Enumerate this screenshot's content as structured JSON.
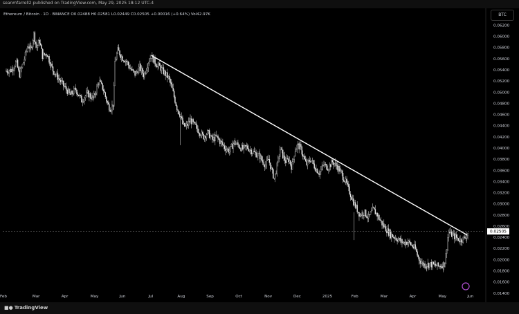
{
  "header": {
    "publisher_line": "seanmfarrell2 published on TradingView.com, May 29, 2025 18:12 UTC-4"
  },
  "legend": {
    "symbol": "Ethereum / Bitcoin · 1D · BINANCE",
    "open": "O0.02488",
    "high": "H0.02581",
    "low": "L0.02449",
    "close": "C0.02505",
    "change": "+0.00016 (+0.64%)",
    "volume": "Vol42.97K"
  },
  "currency_button": "BTC",
  "footer": {
    "logo_text": "TradingView"
  },
  "colors": {
    "background": "#000000",
    "candle": "#e8e8e8",
    "trendline": "#ffffff",
    "price_label_bg": "#ffffff",
    "price_label_fg": "#000000"
  },
  "chart_data": {
    "type": "candlestick",
    "title": "Ethereum / Bitcoin · 1D · BINANCE",
    "ylim": [
      0.0136,
      0.0628
    ],
    "y_ticks": [
      "0.06200",
      "0.06000",
      "0.05800",
      "0.05600",
      "0.05400",
      "0.05200",
      "0.05000",
      "0.04800",
      "0.04600",
      "0.04400",
      "0.04200",
      "0.04000",
      "0.03800",
      "0.03600",
      "0.03400",
      "0.03200",
      "0.03000",
      "0.02800",
      "0.02600",
      "0.02400",
      "0.02200",
      "0.02000",
      "0.01800",
      "0.01600",
      "0.01400"
    ],
    "x_ticks": [
      "Feb",
      "Mar",
      "Apr",
      "May",
      "Jun",
      "Jul",
      "Aug",
      "Sep",
      "Oct",
      "Nov",
      "Dec",
      "2025",
      "Feb",
      "Mar",
      "Apr",
      "May",
      "Jun"
    ],
    "x_tick_months": [
      0,
      1,
      2,
      3,
      4,
      5,
      6,
      7,
      8,
      9,
      10,
      11,
      12,
      13,
      14,
      15,
      16
    ],
    "last_price": "0.02505",
    "last_price_value": 0.02505,
    "trendline": {
      "start": [
        5.0,
        0.0566
      ],
      "end": [
        15.9,
        0.0244
      ]
    },
    "price_path": [
      [
        0.0,
        0.0538
      ],
      [
        0.2,
        0.054
      ],
      [
        0.35,
        0.0555
      ],
      [
        0.45,
        0.053
      ],
      [
        0.6,
        0.0555
      ],
      [
        0.75,
        0.0585
      ],
      [
        0.85,
        0.0575
      ],
      [
        0.95,
        0.0605
      ],
      [
        1.05,
        0.058
      ],
      [
        1.15,
        0.0592
      ],
      [
        1.25,
        0.0565
      ],
      [
        1.4,
        0.057
      ],
      [
        1.6,
        0.054
      ],
      [
        1.8,
        0.0525
      ],
      [
        2.0,
        0.051
      ],
      [
        2.2,
        0.0495
      ],
      [
        2.4,
        0.0505
      ],
      [
        2.6,
        0.0485
      ],
      [
        2.8,
        0.0498
      ],
      [
        3.0,
        0.0488
      ],
      [
        3.2,
        0.052
      ],
      [
        3.35,
        0.0505
      ],
      [
        3.5,
        0.0478
      ],
      [
        3.6,
        0.047
      ],
      [
        3.7,
        0.048
      ],
      [
        3.75,
        0.0555
      ],
      [
        3.85,
        0.0575
      ],
      [
        4.0,
        0.0562
      ],
      [
        4.15,
        0.0555
      ],
      [
        4.3,
        0.054
      ],
      [
        4.45,
        0.0532
      ],
      [
        4.6,
        0.0545
      ],
      [
        4.75,
        0.053
      ],
      [
        4.9,
        0.0555
      ],
      [
        5.0,
        0.0565
      ],
      [
        5.15,
        0.0552
      ],
      [
        5.3,
        0.0545
      ],
      [
        5.45,
        0.0535
      ],
      [
        5.6,
        0.0525
      ],
      [
        5.7,
        0.051
      ],
      [
        5.8,
        0.049
      ],
      [
        5.9,
        0.047
      ],
      [
        6.0,
        0.046
      ],
      [
        6.1,
        0.044
      ],
      [
        6.2,
        0.0438
      ],
      [
        6.35,
        0.045
      ],
      [
        6.5,
        0.044
      ],
      [
        6.65,
        0.043
      ],
      [
        6.8,
        0.042
      ],
      [
        6.95,
        0.0428
      ],
      [
        7.1,
        0.0415
      ],
      [
        7.25,
        0.042
      ],
      [
        7.4,
        0.041
      ],
      [
        7.55,
        0.04
      ],
      [
        7.7,
        0.0395
      ],
      [
        7.85,
        0.041
      ],
      [
        8.0,
        0.0405
      ],
      [
        8.15,
        0.0398
      ],
      [
        8.3,
        0.0402
      ],
      [
        8.45,
        0.0395
      ],
      [
        8.6,
        0.039
      ],
      [
        8.75,
        0.0385
      ],
      [
        8.85,
        0.0375
      ],
      [
        8.95,
        0.037
      ],
      [
        9.05,
        0.038
      ],
      [
        9.15,
        0.036
      ],
      [
        9.25,
        0.0345
      ],
      [
        9.35,
        0.037
      ],
      [
        9.45,
        0.04
      ],
      [
        9.55,
        0.0385
      ],
      [
        9.65,
        0.0375
      ],
      [
        9.75,
        0.038
      ],
      [
        9.85,
        0.0365
      ],
      [
        9.95,
        0.0395
      ],
      [
        10.05,
        0.0405
      ],
      [
        10.15,
        0.04
      ],
      [
        10.25,
        0.0385
      ],
      [
        10.35,
        0.037
      ],
      [
        10.5,
        0.038
      ],
      [
        10.65,
        0.0365
      ],
      [
        10.8,
        0.0355
      ],
      [
        10.95,
        0.037
      ],
      [
        11.1,
        0.0365
      ],
      [
        11.25,
        0.0375
      ],
      [
        11.4,
        0.0368
      ],
      [
        11.55,
        0.0355
      ],
      [
        11.7,
        0.034
      ],
      [
        11.85,
        0.032
      ],
      [
        12.0,
        0.03
      ],
      [
        12.1,
        0.029
      ],
      [
        12.2,
        0.028
      ],
      [
        12.35,
        0.0285
      ],
      [
        12.5,
        0.0275
      ],
      [
        12.65,
        0.029
      ],
      [
        12.8,
        0.028
      ],
      [
        12.95,
        0.0265
      ],
      [
        13.1,
        0.0255
      ],
      [
        13.25,
        0.0245
      ],
      [
        13.4,
        0.024
      ],
      [
        13.55,
        0.0235
      ],
      [
        13.7,
        0.023
      ],
      [
        13.85,
        0.0232
      ],
      [
        14.0,
        0.0225
      ],
      [
        14.1,
        0.022
      ],
      [
        14.2,
        0.0205
      ],
      [
        14.3,
        0.0195
      ],
      [
        14.45,
        0.019
      ],
      [
        14.6,
        0.0192
      ],
      [
        14.75,
        0.019
      ],
      [
        14.9,
        0.0188
      ],
      [
        15.0,
        0.019
      ],
      [
        15.1,
        0.0192
      ],
      [
        15.15,
        0.02
      ],
      [
        15.25,
        0.025
      ],
      [
        15.35,
        0.0245
      ],
      [
        15.5,
        0.024
      ],
      [
        15.65,
        0.0235
      ],
      [
        15.8,
        0.0238
      ],
      [
        15.95,
        0.025
      ]
    ]
  }
}
